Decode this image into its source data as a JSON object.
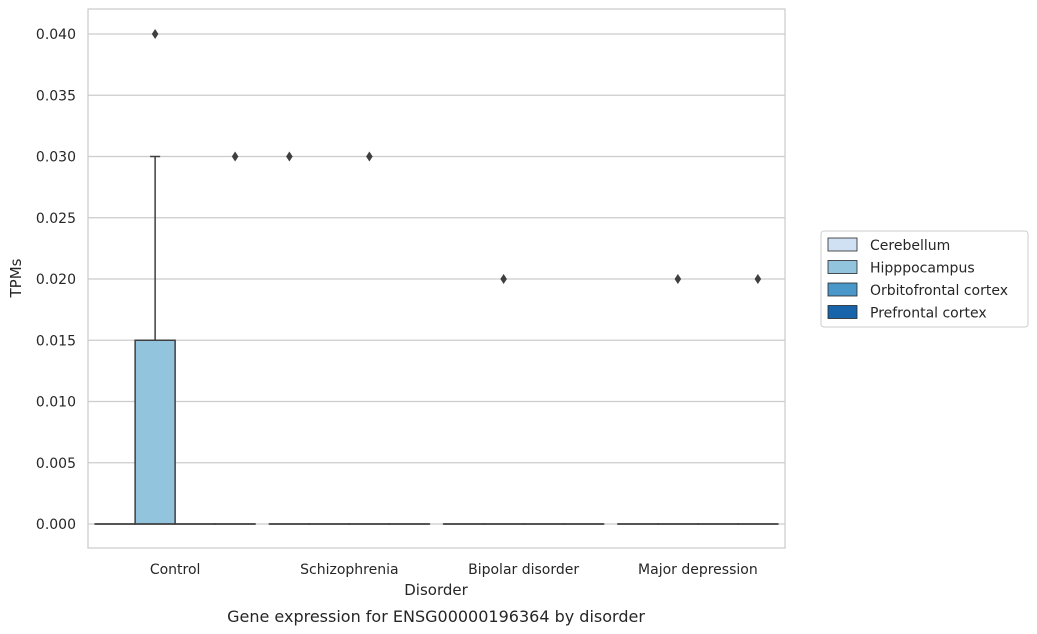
{
  "chart_data": {
    "type": "box",
    "caption": "Gene expression for ENSG00000196364 by disorder",
    "xlabel": "Disorder",
    "ylabel": "TPMs",
    "ylim": [
      -0.002,
      0.042
    ],
    "yticks": [
      "0.000",
      "0.005",
      "0.010",
      "0.015",
      "0.020",
      "0.025",
      "0.030",
      "0.035",
      "0.040"
    ],
    "ytick_values": [
      0,
      0.005,
      0.01,
      0.015,
      0.02,
      0.025,
      0.03,
      0.035,
      0.04
    ],
    "categories": [
      "Control",
      "Schizophrenia",
      "Bipolar disorder",
      "Major depression"
    ],
    "grid": true,
    "legend_placement": "right",
    "series": [
      {
        "name": "Cerebellum",
        "color": "#cfe1f2",
        "boxes": [
          {
            "q1": 0,
            "median": 0,
            "q3": 0,
            "whisker_low": 0,
            "whisker_high": 0,
            "outliers": []
          },
          {
            "q1": 0,
            "median": 0,
            "q3": 0,
            "whisker_low": 0,
            "whisker_high": 0,
            "outliers": [
              0.03
            ]
          },
          {
            "q1": 0,
            "median": 0,
            "q3": 0,
            "whisker_low": 0,
            "whisker_high": 0,
            "outliers": []
          },
          {
            "q1": 0,
            "median": 0,
            "q3": 0,
            "whisker_low": 0,
            "whisker_high": 0,
            "outliers": []
          }
        ]
      },
      {
        "name": "Hipppocampus",
        "color": "#93c4de",
        "boxes": [
          {
            "q1": 0,
            "median": 0,
            "q3": 0.015,
            "whisker_low": 0,
            "whisker_high": 0.03,
            "outliers": [
              0.04
            ]
          },
          {
            "q1": 0,
            "median": 0,
            "q3": 0,
            "whisker_low": 0,
            "whisker_high": 0,
            "outliers": []
          },
          {
            "q1": 0,
            "median": 0,
            "q3": 0,
            "whisker_low": 0,
            "whisker_high": 0,
            "outliers": [
              0.02
            ]
          },
          {
            "q1": 0,
            "median": 0,
            "q3": 0,
            "whisker_low": 0,
            "whisker_high": 0,
            "outliers": [
              0.02
            ]
          }
        ]
      },
      {
        "name": "Orbitofrontal cortex",
        "color": "#4a98c9",
        "boxes": [
          {
            "q1": 0,
            "median": 0,
            "q3": 0,
            "whisker_low": 0,
            "whisker_high": 0,
            "outliers": []
          },
          {
            "q1": 0,
            "median": 0,
            "q3": 0,
            "whisker_low": 0,
            "whisker_high": 0,
            "outliers": [
              0.03
            ]
          },
          {
            "q1": 0,
            "median": 0,
            "q3": 0,
            "whisker_low": 0,
            "whisker_high": 0,
            "outliers": []
          },
          {
            "q1": 0,
            "median": 0,
            "q3": 0,
            "whisker_low": 0,
            "whisker_high": 0,
            "outliers": []
          }
        ]
      },
      {
        "name": "Prefrontal cortex",
        "color": "#1764ab",
        "boxes": [
          {
            "q1": 0,
            "median": 0,
            "q3": 0,
            "whisker_low": 0,
            "whisker_high": 0,
            "outliers": [
              0.03
            ]
          },
          {
            "q1": 0,
            "median": 0,
            "q3": 0,
            "whisker_low": 0,
            "whisker_high": 0,
            "outliers": []
          },
          {
            "q1": 0,
            "median": 0,
            "q3": 0,
            "whisker_low": 0,
            "whisker_high": 0,
            "outliers": []
          },
          {
            "q1": 0,
            "median": 0,
            "q3": 0,
            "whisker_low": 0,
            "whisker_high": 0,
            "outliers": [
              0.02
            ]
          }
        ]
      }
    ]
  }
}
